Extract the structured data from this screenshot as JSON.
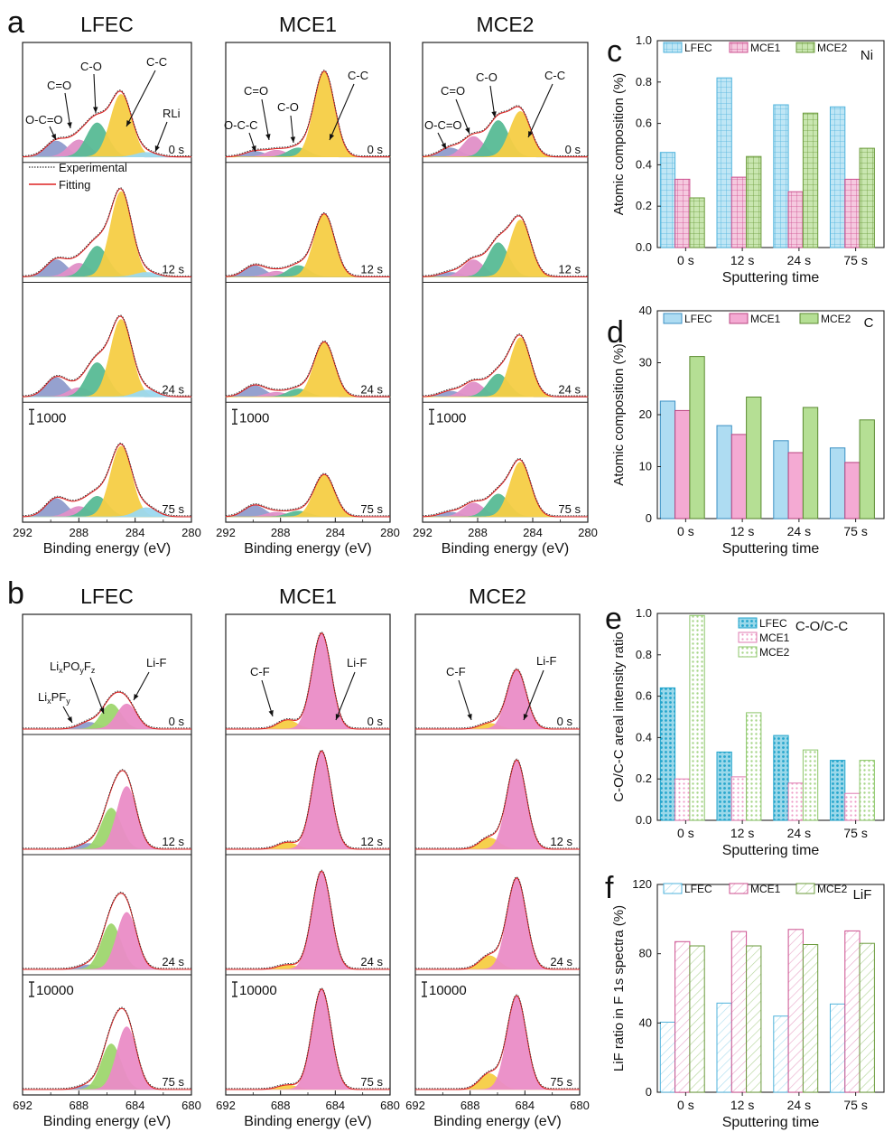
{
  "panels": {
    "a": {
      "letter": "a",
      "xlabel": "Binding energy (eV)",
      "scale": "1000",
      "ticks": [
        "292",
        "288",
        "284",
        "280"
      ]
    },
    "b": {
      "letter": "b",
      "xlabel": "Binding energy (eV)",
      "scale": "10000",
      "ticks": [
        "692",
        "688",
        "684",
        "680"
      ]
    },
    "times": [
      "0 s",
      "12 s",
      "24 s",
      "75 s"
    ]
  },
  "a_columns": [
    {
      "title": "LFEC",
      "peaks": [
        {
          "name": "O-C=O",
          "center": 289.6,
          "height": [
            0.14,
            0.15,
            0.17,
            0.16
          ],
          "color": "#8f9ccc"
        },
        {
          "name": "C=O",
          "center": 288.0,
          "height": [
            0.15,
            0.12,
            0.08,
            0.09
          ],
          "color": "#e08fc7"
        },
        {
          "name": "C-O",
          "center": 286.7,
          "height": [
            0.3,
            0.27,
            0.3,
            0.18
          ],
          "color": "#57bb95"
        },
        {
          "name": "C-C",
          "center": 285.0,
          "height": [
            0.55,
            0.75,
            0.68,
            0.62
          ],
          "color": "#f6cd45"
        },
        {
          "name": "RLi",
          "center": 283.2,
          "height": [
            0.04,
            0.04,
            0.06,
            0.08
          ],
          "color": "#9bd8ef"
        }
      ],
      "labels": [
        "O-C=O",
        "C=O",
        "C-O",
        "C-C",
        "RLi"
      ],
      "legend": {
        "experimental": "Experimental",
        "fitting": "Fitting"
      }
    },
    {
      "title": "MCE1",
      "peaks": [
        {
          "name": "O-C-C",
          "center": 289.9,
          "height": [
            0.05,
            0.1,
            0.1,
            0.1
          ],
          "color": "#8f9ccc"
        },
        {
          "name": "C=O",
          "center": 288.3,
          "height": [
            0.06,
            0.05,
            0.04,
            0.04
          ],
          "color": "#e08fc7"
        },
        {
          "name": "C-O",
          "center": 286.7,
          "height": [
            0.08,
            0.1,
            0.07,
            0.05
          ],
          "color": "#57bb95"
        },
        {
          "name": "C-C",
          "center": 284.8,
          "height": [
            0.75,
            0.55,
            0.48,
            0.37
          ],
          "color": "#f6cd45"
        }
      ],
      "labels": [
        "O-C-C",
        "C=O",
        "C-O",
        "C-C"
      ]
    },
    {
      "title": "MCE2",
      "peaks": [
        {
          "name": "O-C=O",
          "center": 290.0,
          "height": [
            0.08,
            0.04,
            0.05,
            0.04
          ],
          "color": "#8f9ccc"
        },
        {
          "name": "C=O",
          "center": 288.3,
          "height": [
            0.18,
            0.15,
            0.13,
            0.12
          ],
          "color": "#e08fc7"
        },
        {
          "name": "C-O",
          "center": 286.5,
          "height": [
            0.32,
            0.3,
            0.2,
            0.2
          ],
          "color": "#57bb95"
        },
        {
          "name": "C-C",
          "center": 284.9,
          "height": [
            0.4,
            0.5,
            0.52,
            0.48
          ],
          "color": "#f6cd45"
        }
      ],
      "labels": [
        "O-C=O",
        "C=O",
        "C-O",
        "C-C"
      ]
    }
  ],
  "b_columns": [
    {
      "title": "LFEC",
      "peaks": [
        {
          "name": "LixPFy",
          "center": 687.3,
          "height": [
            0.06,
            0.05,
            0.04,
            0.04
          ],
          "color": "#8f9ccc"
        },
        {
          "name": "LixPOyFz",
          "center": 685.7,
          "height": [
            0.22,
            0.36,
            0.4,
            0.4
          ],
          "color": "#9ed66e"
        },
        {
          "name": "Li-F",
          "center": 684.6,
          "height": [
            0.22,
            0.55,
            0.5,
            0.55
          ],
          "color": "#ea8cc6"
        }
      ],
      "labels": {
        "lipf": {
          "base": "Li",
          "s1": "x",
          "m1": "PF",
          "s2": "y"
        },
        "lipof": {
          "base": "Li",
          "s1": "x",
          "m1": "PO",
          "s2": "y",
          "m2": "F",
          "s3": "z"
        },
        "lif": "Li-F"
      }
    },
    {
      "title": "MCE1",
      "peaks": [
        {
          "name": "C-F",
          "center": 687.5,
          "height": [
            0.08,
            0.06,
            0.04,
            0.04
          ],
          "color": "#f6cd45"
        },
        {
          "name": "Li-F",
          "center": 685.0,
          "height": [
            0.84,
            0.86,
            0.86,
            0.88
          ],
          "color": "#ea8cc6"
        }
      ],
      "labels": {
        "cf": "C-F",
        "lif": "Li-F"
      }
    },
    {
      "title": "MCE2",
      "peaks": [
        {
          "name": "C-F",
          "center": 686.6,
          "height": [
            0.05,
            0.1,
            0.12,
            0.14
          ],
          "color": "#f6cd45"
        },
        {
          "name": "Li-F",
          "center": 684.6,
          "height": [
            0.52,
            0.78,
            0.8,
            0.82
          ],
          "color": "#ea8cc6"
        }
      ],
      "labels": {
        "cf": "C-F",
        "lif": "Li-F"
      }
    }
  ],
  "chart_data": [
    {
      "panel": "c",
      "type": "bar",
      "element": "Ni",
      "categories": [
        "0 s",
        "12 s",
        "24 s",
        "75 s"
      ],
      "series": [
        {
          "name": "LFEC",
          "values": [
            0.46,
            0.82,
            0.69,
            0.68
          ],
          "color": "#4fb3dc",
          "fill": "#bfe6f5",
          "pattern": "grid"
        },
        {
          "name": "MCE1",
          "values": [
            0.33,
            0.34,
            0.27,
            0.33
          ],
          "color": "#cc4f8f",
          "fill": "#f5c9df",
          "pattern": "grid"
        },
        {
          "name": "MCE2",
          "values": [
            0.24,
            0.44,
            0.65,
            0.48
          ],
          "color": "#6a9a3a",
          "fill": "#c9e6b0",
          "pattern": "grid"
        }
      ],
      "xlabel": "Sputtering time",
      "ylabel": "Atomic composition (%)",
      "ylim": [
        0,
        1.0
      ],
      "yticks": [
        "0.0",
        "0.2",
        "0.4",
        "0.6",
        "0.8",
        "1.0"
      ]
    },
    {
      "panel": "d",
      "type": "bar",
      "element": "C",
      "categories": [
        "0 s",
        "12 s",
        "24 s",
        "75 s"
      ],
      "series": [
        {
          "name": "LFEC",
          "values": [
            22.6,
            17.9,
            15.0,
            13.6
          ],
          "color": "#3c91c4",
          "fill": "#aedcf2",
          "pattern": "solid"
        },
        {
          "name": "MCE1",
          "values": [
            20.8,
            16.2,
            12.7,
            10.8
          ],
          "color": "#b8447f",
          "fill": "#f4aad3",
          "pattern": "solid"
        },
        {
          "name": "MCE2",
          "values": [
            31.2,
            23.4,
            21.4,
            19.0
          ],
          "color": "#5a8a30",
          "fill": "#b5df94",
          "pattern": "solid"
        }
      ],
      "xlabel": "Sputtering time",
      "ylabel": "Atomic composition (%)",
      "ylim": [
        0,
        40
      ],
      "yticks": [
        "0",
        "10",
        "20",
        "30",
        "40"
      ]
    },
    {
      "panel": "e",
      "type": "bar",
      "element": "C-O/C-C",
      "categories": [
        "0 s",
        "12 s",
        "24 s",
        "75 s"
      ],
      "series": [
        {
          "name": "LFEC",
          "values": [
            0.64,
            0.33,
            0.41,
            0.29
          ],
          "color": "#23a5cc",
          "fill": "#9ad8ea",
          "pattern": "dots"
        },
        {
          "name": "MCE1",
          "values": [
            0.2,
            0.21,
            0.18,
            0.13
          ],
          "color": "#df7bb0",
          "fill": "#fbe0ee",
          "pattern": "dots"
        },
        {
          "name": "MCE2",
          "values": [
            0.99,
            0.52,
            0.34,
            0.29
          ],
          "color": "#8dc66a",
          "fill": "#e3f3d7",
          "pattern": "dots"
        }
      ],
      "xlabel": "Sputtering time",
      "ylabel": "C-O/C-C areal intensity ratio",
      "ylim": [
        0,
        1.0
      ],
      "yticks": [
        "0.0",
        "0.2",
        "0.4",
        "0.6",
        "0.8",
        "1.0"
      ]
    },
    {
      "panel": "f",
      "type": "bar",
      "element": "LiF",
      "categories": [
        "0 s",
        "12 s",
        "24 s",
        "75 s"
      ],
      "series": [
        {
          "name": "LFEC",
          "values": [
            40.5,
            51.5,
            44.0,
            51.0
          ],
          "color": "#4fb3dc",
          "fill": "#ffffff",
          "pattern": "hatch"
        },
        {
          "name": "MCE1",
          "values": [
            87.0,
            92.8,
            94.0,
            93.2
          ],
          "color": "#cc4f8f",
          "fill": "#ffffff",
          "pattern": "hatch"
        },
        {
          "name": "MCE2",
          "values": [
            84.5,
            84.5,
            85.3,
            86.0
          ],
          "color": "#6a9a3a",
          "fill": "#ffffff",
          "pattern": "hatch"
        }
      ],
      "xlabel": "Sputtering time",
      "ylabel": "LiF ratio in F 1s spectra (%)",
      "ylim": [
        0,
        120
      ],
      "yticks": [
        "0",
        "40",
        "80",
        "120"
      ]
    }
  ]
}
